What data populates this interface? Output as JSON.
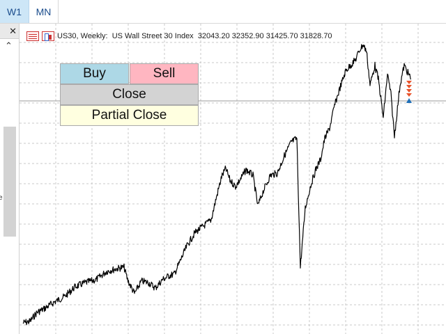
{
  "timeframes": {
    "w1": "W1",
    "mn": "MN"
  },
  "navigator": {
    "close_glyph": "✕",
    "scroll_up_glyph": "⌃",
    "cut_text": "e"
  },
  "chart": {
    "symbol": "US30",
    "period": "Weekly",
    "description": "US Wall Street 30 Index",
    "open": "32043.20",
    "high": "32352.90",
    "low": "31425.70",
    "close": "31828.70",
    "colors": {
      "price_line": "#000000",
      "grid": "#c8c8c8",
      "sell_marker": "#e8532b",
      "buy_marker": "#1e6fb8"
    }
  },
  "trade_panel": {
    "buy_label": "Buy",
    "sell_label": "Sell",
    "close_label": "Close",
    "partial_close_label": "Partial Close",
    "colors": {
      "buy": "#add8e6",
      "sell": "#ffb6c1",
      "close": "#d3d3d3",
      "partial_close": "#ffffe0"
    }
  }
}
